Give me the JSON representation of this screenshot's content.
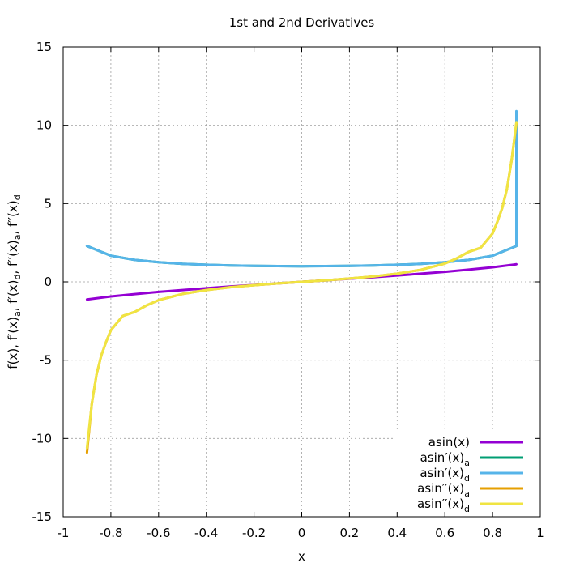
{
  "chart_data": {
    "type": "line",
    "title": "1st and 2nd Derivatives",
    "xlabel": "x",
    "ylabel": {
      "parts": [
        {
          "t": "f(x), f′(x)"
        },
        {
          "t": "a",
          "sub": true
        },
        {
          "t": ", f′(x)"
        },
        {
          "t": "d",
          "sub": true
        },
        {
          "t": ", f′′(x)"
        },
        {
          "t": "a",
          "sub": true
        },
        {
          "t": ", f′′(x)"
        },
        {
          "t": "d",
          "sub": true
        }
      ]
    },
    "xlim": [
      -1,
      1
    ],
    "ylim": [
      -15,
      15
    ],
    "xticks": [
      -1,
      -0.8,
      -0.6,
      -0.4,
      -0.2,
      0,
      0.2,
      0.4,
      0.6,
      0.8,
      1
    ],
    "yticks": [
      -15,
      -10,
      -5,
      0,
      5,
      10,
      15
    ],
    "grid": true,
    "legend_position": "bottom-right",
    "series": [
      {
        "name": "asin(x)",
        "label_main": "asin(x)",
        "label_sub": "",
        "color": "#9400d3",
        "x": [
          -0.9,
          -0.8,
          -0.7,
          -0.6,
          -0.5,
          -0.4,
          -0.3,
          -0.2,
          -0.1,
          0,
          0.1,
          0.2,
          0.3,
          0.4,
          0.5,
          0.6,
          0.7,
          0.8,
          0.9
        ],
        "values": [
          -1.12,
          -0.93,
          -0.78,
          -0.64,
          -0.52,
          -0.41,
          -0.3,
          -0.2,
          -0.1,
          0,
          0.1,
          0.2,
          0.3,
          0.41,
          0.52,
          0.64,
          0.78,
          0.93,
          1.12
        ]
      },
      {
        "name": "asin′(x)a",
        "label_main": "asin′(x)",
        "label_sub": "a",
        "color": "#009e73",
        "x": [
          -0.9,
          -0.8,
          -0.7,
          -0.6,
          -0.5,
          -0.4,
          -0.3,
          -0.2,
          -0.1,
          0,
          0.1,
          0.2,
          0.3,
          0.4,
          0.5,
          0.6,
          0.7,
          0.8,
          0.9
        ],
        "values": [
          2.29,
          1.67,
          1.4,
          1.25,
          1.15,
          1.09,
          1.05,
          1.02,
          1.01,
          1,
          1.01,
          1.02,
          1.05,
          1.09,
          1.15,
          1.25,
          1.4,
          1.67,
          2.29
        ]
      },
      {
        "name": "asin′(x)d",
        "label_main": "asin′(x)",
        "label_sub": "d",
        "color": "#56b4e9",
        "x": [
          -0.9,
          -0.8,
          -0.7,
          -0.6,
          -0.5,
          -0.4,
          -0.3,
          -0.2,
          -0.1,
          0,
          0.1,
          0.2,
          0.3,
          0.4,
          0.5,
          0.6,
          0.7,
          0.8,
          0.9,
          0.9,
          0.9
        ],
        "values": [
          2.29,
          1.67,
          1.4,
          1.25,
          1.15,
          1.09,
          1.05,
          1.02,
          1.01,
          1,
          1.01,
          1.02,
          1.05,
          1.09,
          1.15,
          1.25,
          1.4,
          1.67,
          2.29,
          6.0,
          10.9
        ]
      },
      {
        "name": "asin′′(x)a",
        "label_main": "asin′′(x)",
        "label_sub": "a",
        "color": "#e69f00",
        "x": [
          -0.9,
          -0.88,
          -0.86,
          -0.84,
          -0.82,
          -0.8,
          -0.75,
          -0.7,
          -0.65,
          -0.6,
          -0.5,
          -0.4,
          -0.3,
          -0.2,
          -0.1,
          0,
          0.1,
          0.2,
          0.3,
          0.4,
          0.5,
          0.6,
          0.65,
          0.7,
          0.75,
          0.8,
          0.82,
          0.84,
          0.86,
          0.88,
          0.9
        ],
        "values": [
          -10.9,
          -7.8,
          -5.92,
          -4.69,
          -3.84,
          -3.09,
          -2.18,
          -1.92,
          -1.5,
          -1.17,
          -0.77,
          -0.52,
          -0.34,
          -0.21,
          -0.1,
          0,
          0.1,
          0.21,
          0.34,
          0.52,
          0.77,
          1.17,
          1.5,
          1.92,
          2.18,
          3.09,
          3.84,
          4.69,
          5.92,
          7.8,
          10.1
        ]
      },
      {
        "name": "asin′′(x)d",
        "label_main": "asin′′(x)",
        "label_sub": "d",
        "color": "#f0e442",
        "x": [
          -0.9,
          -0.88,
          -0.86,
          -0.84,
          -0.82,
          -0.8,
          -0.75,
          -0.7,
          -0.65,
          -0.6,
          -0.5,
          -0.4,
          -0.3,
          -0.2,
          -0.1,
          0,
          0.1,
          0.2,
          0.3,
          0.4,
          0.5,
          0.6,
          0.65,
          0.7,
          0.75,
          0.8,
          0.82,
          0.84,
          0.86,
          0.88,
          0.9
        ],
        "values": [
          -10.6,
          -7.8,
          -5.92,
          -4.69,
          -3.84,
          -3.09,
          -2.18,
          -1.92,
          -1.5,
          -1.17,
          -0.77,
          -0.52,
          -0.34,
          -0.21,
          -0.1,
          0,
          0.1,
          0.21,
          0.34,
          0.52,
          0.77,
          1.17,
          1.5,
          1.92,
          2.18,
          3.09,
          3.84,
          4.69,
          5.92,
          7.8,
          10.2
        ]
      }
    ]
  }
}
